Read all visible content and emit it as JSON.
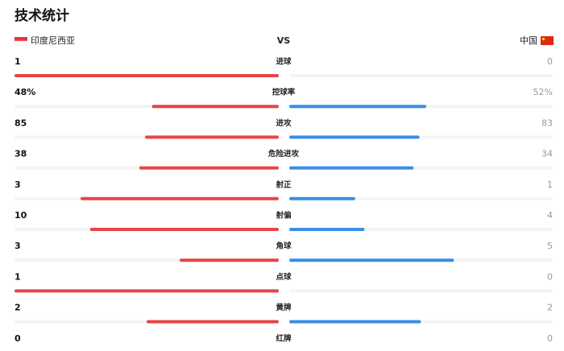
{
  "header": {
    "title": "技术统计",
    "home": "印度尼西亚",
    "vs": "VS",
    "away": "中国"
  },
  "stats": [
    {
      "label": "进球",
      "home": 1,
      "away": 0
    },
    {
      "label": "控球率",
      "home": {
        "value": 48,
        "label": "48%"
      },
      "away": {
        "value": 52,
        "label": "52%"
      }
    },
    {
      "label": "进攻",
      "home": 85,
      "away": 83
    },
    {
      "label": "危险进攻",
      "home": 38,
      "away": 34
    },
    {
      "label": "射正",
      "home": 3,
      "away": 1
    },
    {
      "label": "射偏",
      "home": 10,
      "away": 4
    },
    {
      "label": "角球",
      "home": 3,
      "away": 5
    },
    {
      "label": "点球",
      "home": 1,
      "away": 0
    },
    {
      "label": "黄牌",
      "home": 2,
      "away": 2
    },
    {
      "label": "红牌",
      "home": 0,
      "away": 0
    }
  ],
  "colors": {
    "home": "#e84545",
    "away": "#3a8ee6"
  }
}
